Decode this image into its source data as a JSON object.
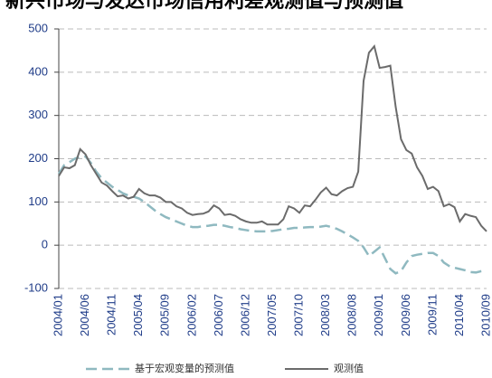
{
  "chart_data": {
    "type": "line",
    "title": "新兴市场与发达市场信用利差观测值与预测值",
    "categories": [
      "2004/01",
      null,
      null,
      null,
      null,
      "2004/06",
      null,
      null,
      null,
      null,
      "2004/11",
      null,
      null,
      null,
      null,
      "2005/04",
      null,
      null,
      null,
      null,
      "2005/09",
      null,
      null,
      null,
      null,
      "2006/02",
      null,
      null,
      null,
      null,
      "2006/07",
      null,
      null,
      null,
      null,
      "2006/12",
      null,
      null,
      null,
      null,
      "2007/05",
      null,
      null,
      null,
      null,
      "2007/10",
      null,
      null,
      null,
      null,
      "2008/03",
      null,
      null,
      null,
      null,
      "2008/08",
      null,
      null,
      null,
      null,
      "2009/01",
      null,
      null,
      null,
      null,
      "2009/06",
      null,
      null,
      null,
      null,
      "2009/11",
      null,
      null,
      null,
      null,
      "2010/04",
      null,
      null,
      null,
      null,
      "2010/09"
    ],
    "series": [
      {
        "name": "基于宏观变量的预测值",
        "color": "#8fb9c0",
        "dash": true,
        "values": [
          165,
          185,
          192,
          200,
          205,
          205,
          190,
          170,
          155,
          145,
          135,
          128,
          120,
          115,
          112,
          108,
          100,
          90,
          80,
          72,
          65,
          60,
          55,
          50,
          45,
          42,
          42,
          44,
          45,
          47,
          47,
          45,
          42,
          40,
          37,
          35,
          33,
          32,
          32,
          32,
          33,
          35,
          37,
          38,
          40,
          40,
          41,
          42,
          42,
          43,
          45,
          42,
          38,
          32,
          25,
          18,
          10,
          -5,
          -25,
          -15,
          -5,
          -30,
          -55,
          -65,
          -60,
          -40,
          -25,
          -22,
          -20,
          -18,
          -18,
          -25,
          -40,
          -48,
          -52,
          -55,
          -58,
          -62,
          -63,
          -60,
          -58
        ]
      },
      {
        "name": "观测值",
        "color": "#6b6b6b",
        "dash": false,
        "values": [
          160,
          180,
          178,
          185,
          222,
          210,
          185,
          165,
          145,
          138,
          125,
          113,
          115,
          108,
          112,
          130,
          120,
          115,
          115,
          110,
          100,
          100,
          90,
          85,
          75,
          70,
          72,
          73,
          78,
          92,
          85,
          70,
          72,
          68,
          60,
          55,
          52,
          52,
          55,
          48,
          48,
          48,
          60,
          90,
          85,
          75,
          92,
          90,
          105,
          122,
          133,
          118,
          115,
          125,
          132,
          135,
          170,
          380,
          445,
          460,
          410,
          412,
          415,
          320,
          245,
          220,
          212,
          180,
          160,
          130,
          135,
          125,
          90,
          95,
          88,
          55,
          72,
          68,
          65,
          45,
          32
        ]
      }
    ],
    "ylim": [
      -100,
      500
    ],
    "yticks": [
      -100,
      0,
      100,
      200,
      300,
      400,
      500
    ],
    "grid": true
  }
}
